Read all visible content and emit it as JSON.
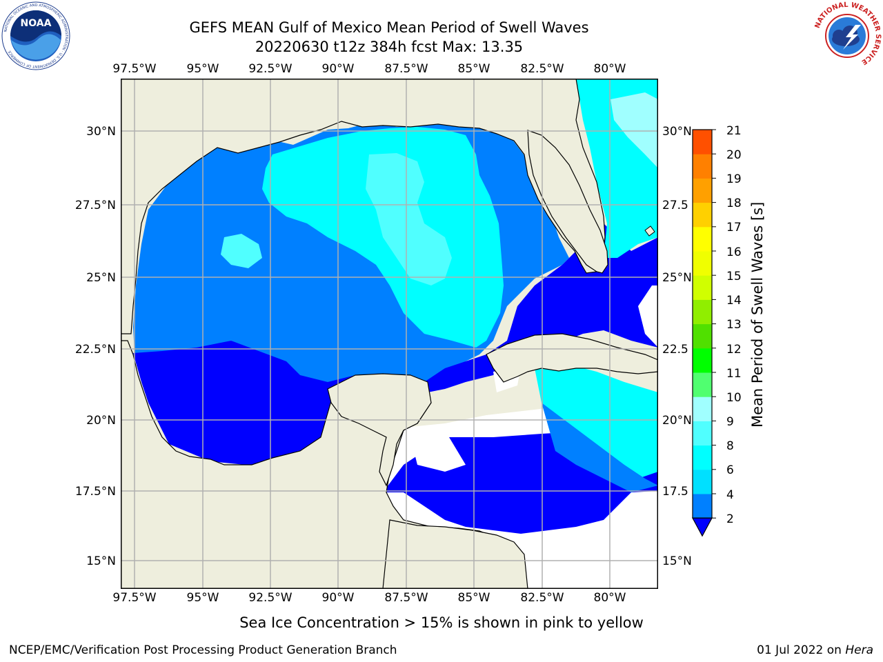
{
  "header": {
    "title_line1": "GEFS MEAN Gulf of Mexico Mean Period of Swell Waves",
    "title_line2": "20220630 t12z 384h fcst   Max: 13.35"
  },
  "logos": {
    "noaa_text": "NOAA",
    "noaa_ring_text": "NATIONAL OCEANIC AND ATMOSPHERIC ADMINISTRATION · U.S. DEPARTMENT OF COMMERCE",
    "nws_ring_text": "NATIONAL WEATHER SERVICE"
  },
  "map": {
    "lon_labels": [
      "97.5°W",
      "95°W",
      "92.5°W",
      "90°W",
      "87.5°W",
      "85°W",
      "82.5°W",
      "80°W"
    ],
    "lat_labels_left": [
      "30°N",
      "27.5°N",
      "25°N",
      "22.5°N",
      "20°N",
      "17.5°N",
      "15°N"
    ],
    "lat_labels_right": [
      "30°N",
      "27.5",
      "25°N",
      "22.5",
      "20°N",
      "17.5",
      "15°N"
    ],
    "colors": {
      "land": "#eeeedd",
      "ocean_white": "#ffffff",
      "grid": "#b0b0b0"
    }
  },
  "colorbar": {
    "label": "Mean Period of Swell Waves [s]",
    "tick_labels": [
      "2",
      "4",
      "6",
      "8",
      "9",
      "10",
      "11",
      "12",
      "13",
      "14",
      "15",
      "16",
      "17",
      "18",
      "19",
      "20",
      "21"
    ],
    "colors": [
      "#0000ff",
      "#0080ff",
      "#00e0ff",
      "#00ffff",
      "#50ffff",
      "#a0ffff",
      "#50ff70",
      "#00ff00",
      "#50e000",
      "#90ee00",
      "#d0ff00",
      "#f0ff00",
      "#ffff00",
      "#ffd000",
      "#ffa000",
      "#ff8000",
      "#ff5000",
      "#ff2000",
      "#ff0000"
    ]
  },
  "footer": {
    "subtitle": "Sea Ice Concentration > 15% is shown in pink to yellow",
    "left": "NCEP/EMC/Verification Post Processing Product Generation Branch",
    "right_date": "01 Jul 2022 on ",
    "right_host": "Hera"
  }
}
